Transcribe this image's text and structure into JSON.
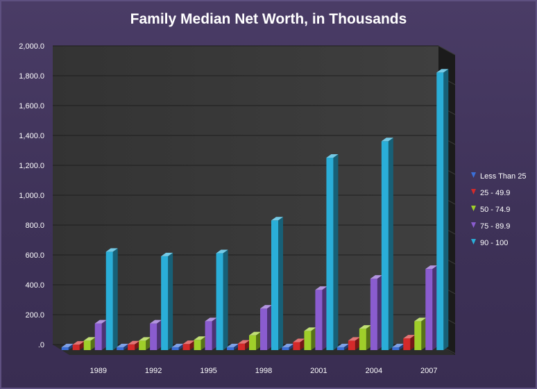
{
  "chart_data": {
    "type": "bar",
    "title": "Family Median Net Worth, in Thousands",
    "xlabel": "",
    "ylabel": "",
    "categories": [
      "1989",
      "1992",
      "1995",
      "1998",
      "2001",
      "2004",
      "2007"
    ],
    "series": [
      {
        "name": "Less Than 25",
        "color": "#3a6fd8",
        "values": [
          0.5,
          0.5,
          0.5,
          0.5,
          0.5,
          0.5,
          0.5
        ]
      },
      {
        "name": "25 - 49.9",
        "color": "#d42a2a",
        "values": [
          18,
          20,
          22,
          25,
          35,
          45,
          60
        ]
      },
      {
        "name": "50 - 74.9",
        "color": "#9fcf2a",
        "values": [
          45,
          45,
          50,
          80,
          110,
          125,
          175
        ]
      },
      {
        "name": "75 - 89.9",
        "color": "#8a5ccf",
        "values": [
          160,
          160,
          175,
          260,
          385,
          460,
          525
        ]
      },
      {
        "name": "90 - 100",
        "color": "#2aaed8",
        "values": [
          640,
          610,
          630,
          850,
          1270,
          1380,
          1840
        ]
      }
    ],
    "ylim": [
      0,
      2000
    ],
    "y_ticks": [
      "2,000.0",
      "1,800.0",
      "1,600.0",
      "1,400.0",
      "1,200.0",
      "1,000.0",
      "800.0",
      "600.0",
      "400.0",
      "200.0",
      ".0"
    ],
    "y_tick_values": [
      2000,
      1800,
      1600,
      1400,
      1200,
      1000,
      800,
      600,
      400,
      200,
      0
    ],
    "grid": true,
    "legend_position": "right"
  }
}
